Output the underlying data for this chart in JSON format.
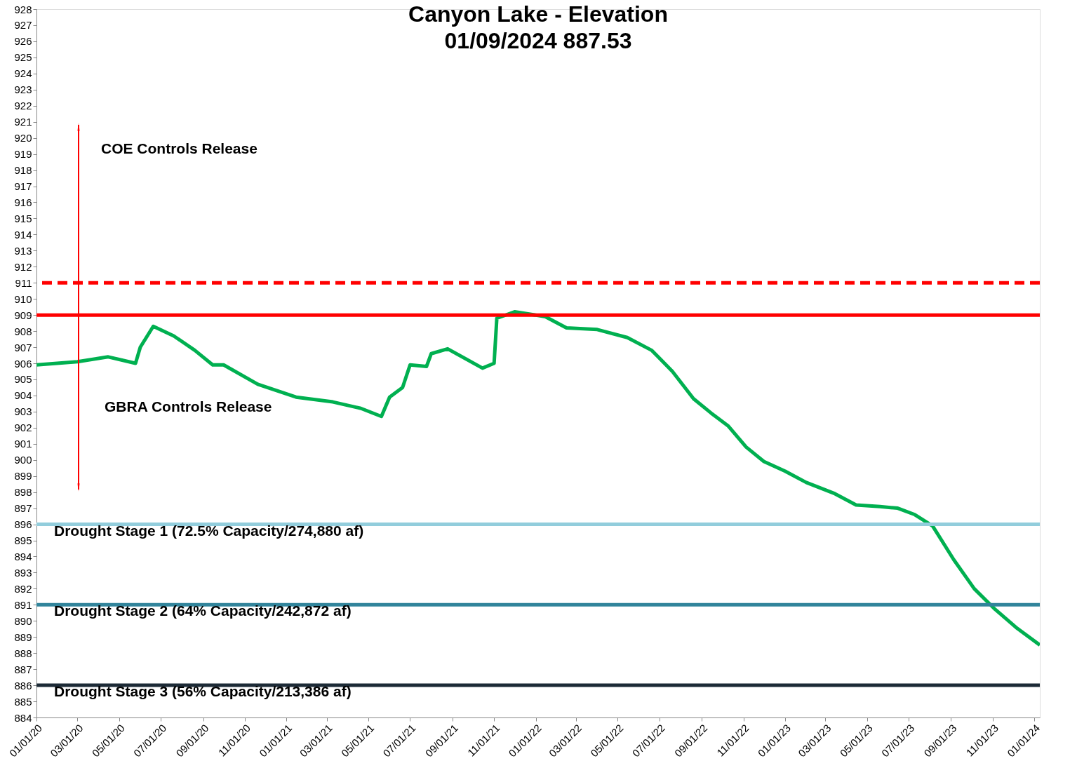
{
  "chart_data": {
    "type": "line",
    "title": "Canyon Lake - Elevation",
    "subtitle": "01/09/2024   887.53",
    "x": [
      "2020-01-01",
      "2020-03-01",
      "2020-04-15",
      "2020-05-25",
      "2020-06-01",
      "2020-06-20",
      "2020-07-20",
      "2020-08-20",
      "2020-09-15",
      "2020-10-01",
      "2020-11-20",
      "2021-01-15",
      "2021-03-10",
      "2021-04-20",
      "2021-05-20",
      "2021-06-01",
      "2021-06-20",
      "2021-07-01",
      "2021-07-25",
      "2021-08-01",
      "2021-08-25",
      "2021-10-15",
      "2021-11-01",
      "2021-11-05",
      "2021-12-01",
      "2022-01-15",
      "2022-02-15",
      "2022-04-01",
      "2022-05-15",
      "2022-06-20",
      "2022-07-20",
      "2022-08-20",
      "2022-09-15",
      "2022-10-10",
      "2022-11-05",
      "2022-12-01",
      "2023-01-01",
      "2023-02-01",
      "2023-03-15",
      "2023-04-15",
      "2023-05-20",
      "2023-06-15",
      "2023-07-10",
      "2023-08-05",
      "2023-09-05",
      "2023-10-05",
      "2023-11-05",
      "2023-12-05",
      "2024-01-09"
    ],
    "series": [
      {
        "color": "#00b050",
        "values": [
          905.9,
          906.1,
          906.4,
          906.0,
          907.0,
          908.3,
          907.7,
          906.8,
          905.9,
          905.9,
          904.7,
          903.9,
          903.6,
          903.2,
          902.7,
          903.9,
          904.5,
          905.9,
          905.8,
          906.6,
          906.9,
          905.7,
          906.0,
          908.8,
          909.2,
          908.9,
          908.2,
          908.1,
          907.6,
          906.8,
          905.5,
          903.8,
          902.9,
          902.1,
          900.8,
          899.9,
          899.3,
          898.6,
          897.9,
          897.2,
          897.1,
          897.0,
          896.6,
          895.9,
          893.8,
          892.0,
          890.7,
          889.6,
          888.5
        ]
      }
    ],
    "xlim": [
      "2020-01-01",
      "2024-01-09"
    ],
    "xticks": [
      {
        "value": "2020-01-01",
        "label": "01/01/20"
      },
      {
        "value": "2020-03-01",
        "label": "03/01/20"
      },
      {
        "value": "2020-05-01",
        "label": "05/01/20"
      },
      {
        "value": "2020-07-01",
        "label": "07/01/20"
      },
      {
        "value": "2020-09-01",
        "label": "09/01/20"
      },
      {
        "value": "2020-11-01",
        "label": "11/01/20"
      },
      {
        "value": "2021-01-01",
        "label": "01/01/21"
      },
      {
        "value": "2021-03-01",
        "label": "03/01/21"
      },
      {
        "value": "2021-05-01",
        "label": "05/01/21"
      },
      {
        "value": "2021-07-01",
        "label": "07/01/21"
      },
      {
        "value": "2021-09-01",
        "label": "09/01/21"
      },
      {
        "value": "2021-11-01",
        "label": "11/01/21"
      },
      {
        "value": "2022-01-01",
        "label": "01/01/22"
      },
      {
        "value": "2022-03-01",
        "label": "03/01/22"
      },
      {
        "value": "2022-05-01",
        "label": "05/01/22"
      },
      {
        "value": "2022-07-01",
        "label": "07/01/22"
      },
      {
        "value": "2022-09-01",
        "label": "09/01/22"
      },
      {
        "value": "2022-11-01",
        "label": "11/01/22"
      },
      {
        "value": "2023-01-01",
        "label": "01/01/23"
      },
      {
        "value": "2023-03-01",
        "label": "03/01/23"
      },
      {
        "value": "2023-05-01",
        "label": "05/01/23"
      },
      {
        "value": "2023-07-01",
        "label": "07/01/23"
      },
      {
        "value": "2023-09-01",
        "label": "09/01/23"
      },
      {
        "value": "2023-11-01",
        "label": "11/01/23"
      },
      {
        "value": "2024-01-01",
        "label": "01/01/24"
      }
    ],
    "ylim": [
      884,
      928
    ],
    "yticks": [
      884,
      885,
      886,
      887,
      888,
      889,
      890,
      891,
      892,
      893,
      894,
      895,
      896,
      897,
      898,
      899,
      900,
      901,
      902,
      903,
      904,
      905,
      906,
      907,
      908,
      909,
      910,
      911,
      912,
      913,
      914,
      915,
      916,
      917,
      918,
      919,
      920,
      921,
      922,
      923,
      924,
      925,
      926,
      927,
      928
    ],
    "grid": false,
    "marker": "none",
    "line_style": "solid",
    "ref_lines": [
      {
        "axis": "y",
        "value": 911,
        "color": "#ff0000",
        "line_style": "dashed"
      },
      {
        "axis": "y",
        "value": 909,
        "color": "#ff0000",
        "line_style": "solid"
      },
      {
        "axis": "y",
        "value": 896,
        "color": "#92cddc",
        "line_style": "solid",
        "label": "Drought Stage 1  (72.5% Capacity/274,880 af)"
      },
      {
        "axis": "y",
        "value": 891,
        "color": "#31849b",
        "line_style": "solid",
        "label": "Drought Stage 2  (64% Capacity/242,872 af)"
      },
      {
        "axis": "y",
        "value": 886,
        "color": "#1c2a36",
        "line_style": "solid",
        "label": "Drought Stage 3  (56% Capacity/213,386 af)"
      }
    ],
    "annotations": [
      "COE Controls Release",
      "GBRA Controls Release"
    ]
  }
}
